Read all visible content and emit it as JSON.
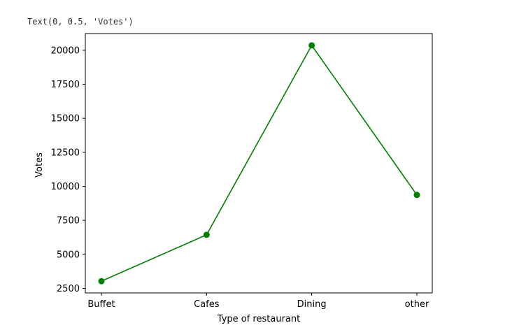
{
  "output_text": "Text(0, 0.5, 'Votes')",
  "chart_data": {
    "type": "line",
    "categories": [
      "Buffet",
      "Cafes",
      "Dining",
      "other"
    ],
    "values": [
      3028,
      6434,
      20363,
      9367
    ],
    "xlabel": "Type of restaurant",
    "ylabel": "Votes",
    "yticks": [
      2500,
      5000,
      7500,
      10000,
      12500,
      15000,
      17500,
      20000
    ],
    "ylim": [
      2161,
      21230
    ],
    "color": "#008000",
    "marker": "circle",
    "grid": false
  }
}
